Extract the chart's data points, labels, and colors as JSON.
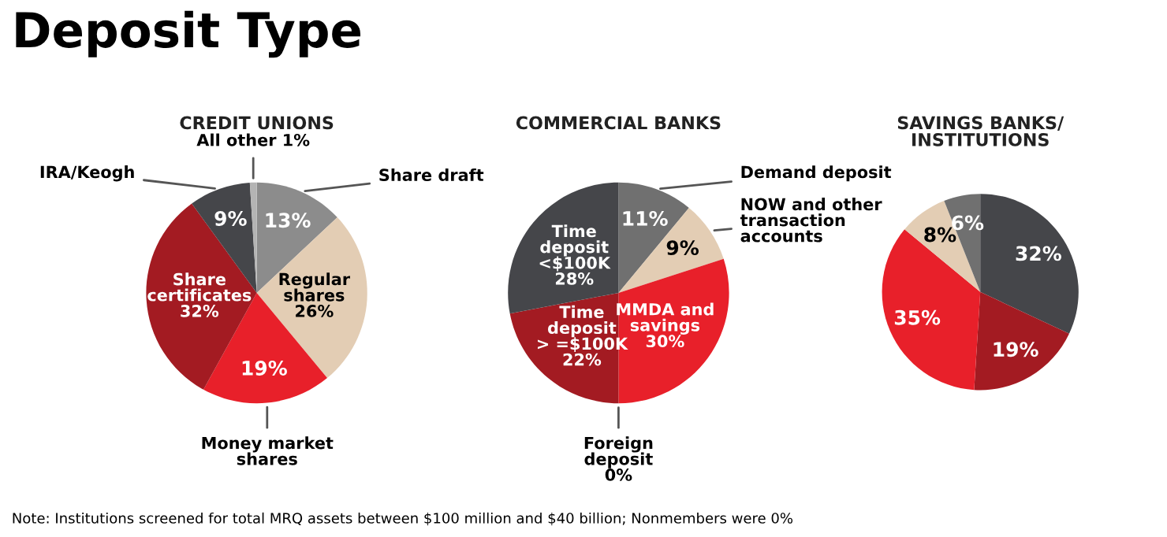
{
  "chart_data": [
    {
      "type": "pie",
      "title": "Deposit Type",
      "subtitle": "CREDIT UNIONS",
      "categories": [
        "Share draft",
        "Regular shares",
        "Money market shares",
        "Share certificates",
        "IRA/Keogh",
        "All other"
      ],
      "values": [
        13,
        26,
        19,
        32,
        9,
        1
      ],
      "colors": [
        "#8c8c8c",
        "#e3cdb4",
        "#e8202a",
        "#a31b22",
        "#45464a",
        "#b4b4b4"
      ],
      "value_labels": [
        "13%",
        "26%",
        "19%",
        "32%",
        "9%",
        "1%"
      ],
      "annotations": [
        "Note: Institutions screened for total MRQ assets between $100 million and $40 billion; Nonmembers were 0%"
      ]
    },
    {
      "type": "pie",
      "subtitle": "COMMERCIAL BANKS",
      "categories": [
        "Demand deposit",
        "NOW and other transaction accounts",
        "MMDA and savings",
        "Foreign deposit",
        "Time deposit > =$100K",
        "Time deposit <$100K"
      ],
      "values": [
        11,
        9,
        30,
        0,
        22,
        28
      ],
      "colors": [
        "#707070",
        "#e3cdb4",
        "#e8202a",
        "#e8202a",
        "#a31b22",
        "#45464a"
      ],
      "value_labels": [
        "11%",
        "9%",
        "30%",
        "0%",
        "22%",
        "28%"
      ]
    },
    {
      "type": "pie",
      "subtitle": "SAVINGS BANKS/ INSTITUTIONS",
      "categories": [
        null,
        null,
        null,
        null,
        null
      ],
      "values": [
        32,
        19,
        35,
        8,
        6
      ],
      "colors": [
        "#45464a",
        "#a31b22",
        "#e8202a",
        "#e3cdb4",
        "#707070"
      ],
      "value_labels": [
        "32%",
        "19%",
        "35%",
        "8%",
        "6%"
      ]
    }
  ]
}
